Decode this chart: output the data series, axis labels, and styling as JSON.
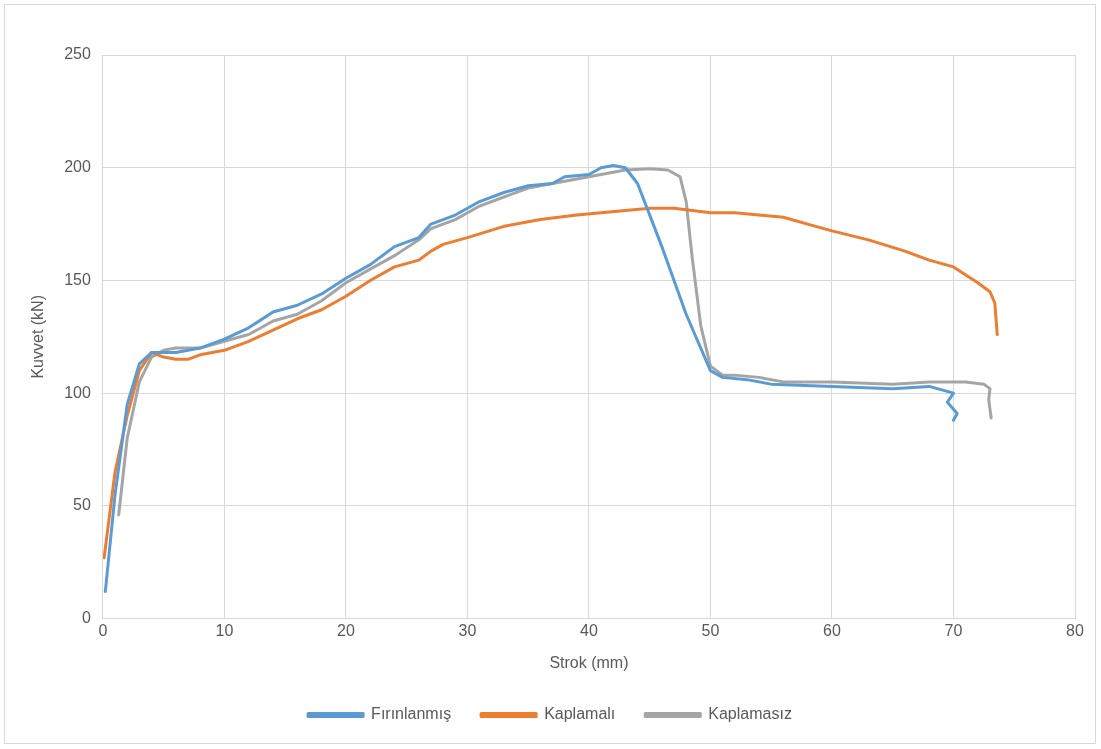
{
  "chart_data": {
    "type": "line",
    "xlabel": "Strok (mm)",
    "ylabel": "Kuvvet (kN)",
    "xlim": [
      0,
      80
    ],
    "xticks": [
      0,
      10,
      20,
      30,
      40,
      50,
      60,
      70,
      80
    ],
    "ylim": [
      0,
      250
    ],
    "yticks": [
      0,
      50,
      100,
      150,
      200,
      250
    ],
    "grid": true,
    "legend": "bottom",
    "marker": "none",
    "line_style": "solid",
    "series": [
      {
        "name": "Fırınlanmış",
        "color": "#5b9bd5",
        "x": [
          0.2,
          1,
          2,
          3,
          4,
          6,
          8,
          10,
          12,
          14,
          16,
          18,
          20,
          22,
          24,
          26,
          27,
          29,
          31,
          33,
          35,
          37,
          38,
          40,
          41,
          42,
          43,
          44,
          46,
          48,
          50,
          51,
          53,
          55,
          60,
          65,
          68,
          70,
          69.5,
          70.3,
          70
        ],
        "values": [
          12,
          55,
          95,
          113,
          118,
          118,
          120,
          124,
          129,
          136,
          139,
          144,
          151,
          157,
          165,
          169,
          175,
          179,
          185,
          189,
          192,
          193,
          196,
          197,
          200,
          201,
          200,
          193,
          165,
          135,
          110,
          107,
          106,
          104,
          103,
          102,
          103,
          100,
          96,
          91,
          88
        ]
      },
      {
        "name": "Kaplamalı",
        "color": "#ed7d31",
        "x": [
          0.1,
          1,
          2,
          3,
          4,
          5,
          6,
          7,
          8,
          10,
          12,
          14,
          16,
          18,
          20,
          22,
          24,
          26,
          27,
          28,
          30,
          33,
          36,
          39,
          41,
          43,
          45,
          47,
          50,
          52,
          54,
          56,
          58,
          60,
          63,
          66,
          68,
          70,
          72,
          73,
          73.4,
          73.6
        ],
        "values": [
          27,
          65,
          90,
          110,
          118,
          116,
          115,
          115,
          117,
          119,
          123,
          128,
          133,
          137,
          143,
          150,
          156,
          159,
          163,
          166,
          169,
          174,
          177,
          179,
          180,
          181,
          182,
          182,
          180,
          180,
          179,
          178,
          175,
          172,
          168,
          163,
          159,
          156,
          149,
          145,
          140,
          126
        ]
      },
      {
        "name": "Kaplamasız",
        "color": "#a5a5a5",
        "x": [
          1.3,
          2,
          3,
          4,
          5,
          6,
          8,
          10,
          12,
          14,
          16,
          18,
          20,
          22,
          24,
          26,
          27,
          29,
          31,
          33,
          35,
          37,
          39,
          41,
          43,
          45,
          46.5,
          47.5,
          48,
          48.5,
          49.2,
          50,
          51,
          52,
          54,
          56,
          60,
          65,
          68,
          71,
          72.5,
          73,
          72.9,
          73.1
        ],
        "values": [
          46,
          80,
          105,
          116,
          119,
          120,
          120,
          123,
          126,
          132,
          135,
          141,
          149,
          155,
          161,
          168,
          173,
          177,
          183,
          187,
          191,
          193,
          195,
          197,
          199,
          199.5,
          199,
          196,
          185,
          160,
          130,
          112,
          108,
          108,
          107,
          105,
          105,
          104,
          105,
          105,
          104,
          102,
          97,
          89
        ]
      }
    ]
  }
}
